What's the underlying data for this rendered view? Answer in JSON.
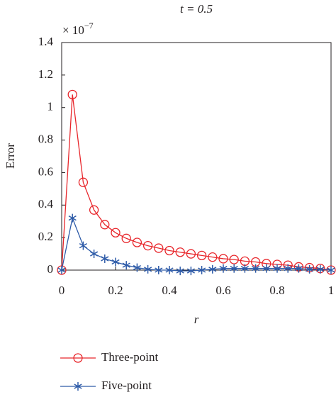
{
  "chart_data": {
    "type": "line",
    "title": "t = 0.5",
    "y_multiplier": {
      "base": "× 10",
      "exponent": "−7"
    },
    "x_label": "r",
    "y_label": "Error",
    "x": [
      0,
      0.04,
      0.08,
      0.12,
      0.16,
      0.2,
      0.24,
      0.28,
      0.32,
      0.36,
      0.4,
      0.44,
      0.48,
      0.52,
      0.56,
      0.6,
      0.64,
      0.68,
      0.72,
      0.76,
      0.8,
      0.84,
      0.88,
      0.92,
      0.96,
      1
    ],
    "series": [
      {
        "name": "Three-point",
        "color": "#e8262b",
        "marker": "circle",
        "values": [
          0,
          1.08,
          0.54,
          0.37,
          0.28,
          0.23,
          0.195,
          0.17,
          0.15,
          0.135,
          0.12,
          0.11,
          0.1,
          0.09,
          0.08,
          0.07,
          0.065,
          0.055,
          0.05,
          0.04,
          0.035,
          0.03,
          0.02,
          0.015,
          0.01,
          0
        ]
      },
      {
        "name": "Five-point",
        "color": "#2e5ba8",
        "marker": "star",
        "values": [
          0,
          0.32,
          0.15,
          0.1,
          0.07,
          0.05,
          0.03,
          0.015,
          0.005,
          0,
          0,
          -0.005,
          -0.005,
          0,
          0.005,
          0.01,
          0.01,
          0.01,
          0.01,
          0.01,
          0.01,
          0.01,
          0.01,
          0.005,
          0.005,
          0
        ]
      }
    ],
    "xlim": [
      0,
      1
    ],
    "xticks": [
      0,
      0.2,
      0.4,
      0.6,
      0.8,
      1
    ],
    "ylim": [
      0,
      1.4
    ],
    "yticks": [
      0,
      0.2,
      0.4,
      0.6,
      0.8,
      1,
      1.2,
      1.4
    ]
  }
}
